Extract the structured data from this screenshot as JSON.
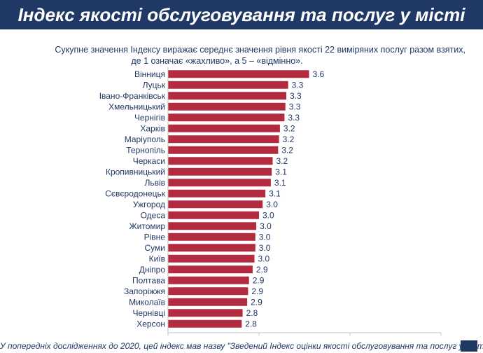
{
  "header": {
    "title": "Індекс якості обслуговування та послуг у місті"
  },
  "subtitle_line1": "Сукупне значення Індексу виражає середнє значення рівня якості 22 виміряних послуг разом взятих,",
  "subtitle_line2": "де 1 означає «жахливо», а 5 – «відмінно».",
  "footnote": "У попередніх дослідженнях до 2020, цей індекс мав назву \"Зведений Індекс оцінки якості обслуговування та послуг у місті\".",
  "page_number": "",
  "colors": {
    "bar": "#b32b3e",
    "header": "#1f3864",
    "text": "#1f3864"
  },
  "chart_data": {
    "type": "bar",
    "orientation": "horizontal",
    "categories": [
      "Вінниця",
      "Луцьк",
      "Івано-Франківськ",
      "Хмельницький",
      "Чернігів",
      "Харків",
      "Маріуполь",
      "Тернопіль",
      "Черкаси",
      "Кропивницький",
      "Львів",
      "Сєвєродонецьк",
      "Ужгород",
      "Одеса",
      "Житомир",
      "Рівне",
      "Суми",
      "Київ",
      "Дніпро",
      "Полтава",
      "Запоріжжя",
      "Миколаїв",
      "Чернівці",
      "Херсон"
    ],
    "values": [
      3.55,
      3.32,
      3.3,
      3.29,
      3.28,
      3.23,
      3.22,
      3.21,
      3.15,
      3.14,
      3.13,
      3.07,
      3.04,
      3.0,
      2.97,
      2.96,
      2.96,
      2.95,
      2.93,
      2.89,
      2.88,
      2.87,
      2.82,
      2.81
    ],
    "data_labels": [
      "3.6",
      "3.3",
      "3.3",
      "3.3",
      "3.3",
      "3.2",
      "3.2",
      "3.2",
      "3.2",
      "3.1",
      "3.1",
      "3.1",
      "3.0",
      "3.0",
      "3.0",
      "3.0",
      "3.0",
      "3.0",
      "2.9",
      "2.9",
      "2.9",
      "2.9",
      "2.8",
      "2.8"
    ],
    "xlim": [
      2.0,
      5.0
    ],
    "xticks": [
      "2.0",
      "3.0",
      "4.0",
      "5.0"
    ],
    "grid": false
  }
}
